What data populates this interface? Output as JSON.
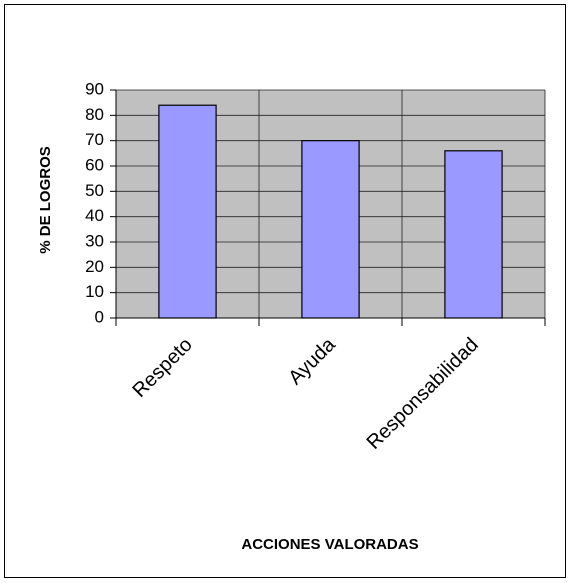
{
  "chart_data": {
    "type": "bar",
    "x_label": "ACCIONES VALORADAS",
    "y_label": "% DE LOGROS",
    "categories": [
      "Respeto",
      "Ayuda",
      "Responsabilidad"
    ],
    "values": [
      84,
      70,
      66
    ],
    "color": "#9999ff",
    "ylim": [
      0,
      90
    ],
    "yticks": [
      0,
      10,
      20,
      30,
      40,
      50,
      60,
      70,
      80,
      90
    ],
    "grid": true
  }
}
